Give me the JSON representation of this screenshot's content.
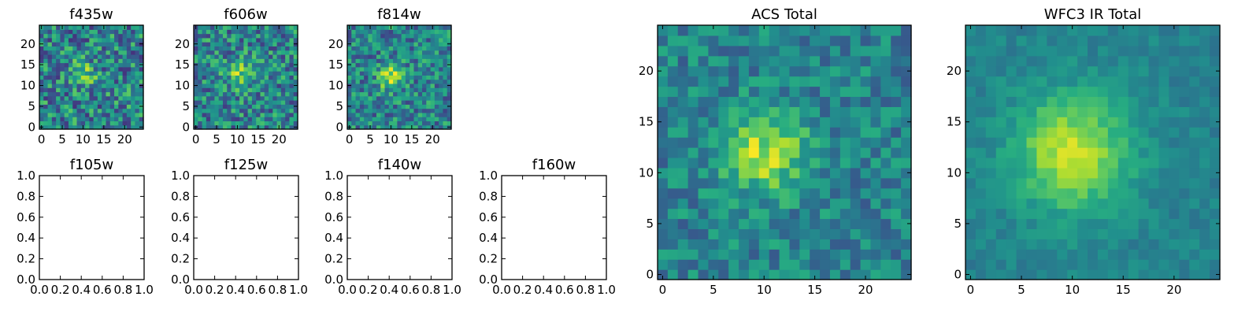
{
  "chart_data": [
    {
      "type": "heatmap",
      "title": "f435w",
      "colormap": "viridis",
      "grid_size": 25,
      "xlim": [
        -0.5,
        24.5
      ],
      "ylim": [
        -0.5,
        24.5
      ],
      "xticks": [
        0,
        5,
        10,
        15,
        20
      ],
      "yticks": [
        0,
        5,
        10,
        15,
        20
      ],
      "source_center": [
        10,
        13
      ],
      "source_sigma": 2.0,
      "source_peak": 0.35,
      "noise_level": 0.6,
      "seed": 11
    },
    {
      "type": "heatmap",
      "title": "f606w",
      "colormap": "viridis",
      "grid_size": 25,
      "xlim": [
        -0.5,
        24.5
      ],
      "ylim": [
        -0.5,
        24.5
      ],
      "xticks": [
        0,
        5,
        10,
        15,
        20
      ],
      "yticks": [
        0,
        5,
        10,
        15,
        20
      ],
      "source_center": [
        11,
        13
      ],
      "source_sigma": 2.5,
      "source_peak": 0.3,
      "noise_level": 0.55,
      "seed": 23
    },
    {
      "type": "heatmap",
      "title": "f814w",
      "colormap": "viridis",
      "grid_size": 25,
      "xlim": [
        -0.5,
        24.5
      ],
      "ylim": [
        -0.5,
        24.5
      ],
      "xticks": [
        0,
        5,
        10,
        15,
        20
      ],
      "yticks": [
        0,
        5,
        10,
        15,
        20
      ],
      "source_center": [
        10,
        12
      ],
      "source_sigma": 2.0,
      "source_peak": 0.45,
      "noise_level": 0.5,
      "seed": 37
    },
    {
      "type": "empty",
      "title": "f105w",
      "xlim": [
        0,
        1
      ],
      "ylim": [
        0,
        1
      ],
      "xticks": [
        "0.0",
        "0.2",
        "0.4",
        "0.6",
        "0.8",
        "1.0"
      ],
      "yticks": [
        "0.0",
        "0.2",
        "0.4",
        "0.6",
        "0.8",
        "1.0"
      ]
    },
    {
      "type": "empty",
      "title": "f125w",
      "xlim": [
        0,
        1
      ],
      "ylim": [
        0,
        1
      ],
      "xticks": [
        "0.0",
        "0.2",
        "0.4",
        "0.6",
        "0.8",
        "1.0"
      ],
      "yticks": [
        "0.0",
        "0.2",
        "0.4",
        "0.6",
        "0.8",
        "1.0"
      ]
    },
    {
      "type": "empty",
      "title": "f140w",
      "xlim": [
        0,
        1
      ],
      "ylim": [
        0,
        1
      ],
      "xticks": [
        "0.0",
        "0.2",
        "0.4",
        "0.6",
        "0.8",
        "1.0"
      ],
      "yticks": [
        "0.0",
        "0.2",
        "0.4",
        "0.6",
        "0.8",
        "1.0"
      ]
    },
    {
      "type": "empty",
      "title": "f160w",
      "xlim": [
        0,
        1
      ],
      "ylim": [
        0,
        1
      ],
      "xticks": [
        "0.0",
        "0.2",
        "0.4",
        "0.6",
        "0.8",
        "1.0"
      ],
      "yticks": [
        "0.0",
        "0.2",
        "0.4",
        "0.6",
        "0.8",
        "1.0"
      ]
    },
    {
      "type": "heatmap",
      "title": "ACS Total",
      "colormap": "viridis",
      "grid_size": 25,
      "xlim": [
        -0.5,
        24.5
      ],
      "ylim": [
        -0.5,
        24.5
      ],
      "xticks": [
        0,
        5,
        10,
        15,
        20
      ],
      "yticks": [
        0,
        5,
        10,
        15,
        20
      ],
      "source_center": [
        10,
        12
      ],
      "source_sigma": 3.0,
      "source_peak": 0.4,
      "noise_level": 0.35,
      "seed": 53
    },
    {
      "type": "heatmap",
      "title": "WFC3 IR Total",
      "colormap": "viridis",
      "grid_size": 25,
      "xlim": [
        -0.5,
        24.5
      ],
      "ylim": [
        -0.5,
        24.5
      ],
      "xticks": [
        0,
        5,
        10,
        15,
        20
      ],
      "yticks": [
        0,
        5,
        10,
        15,
        20
      ],
      "source_center": [
        10,
        12
      ],
      "source_sigma": 4.0,
      "source_peak": 0.45,
      "noise_level": 0.15,
      "seed": 71
    }
  ]
}
